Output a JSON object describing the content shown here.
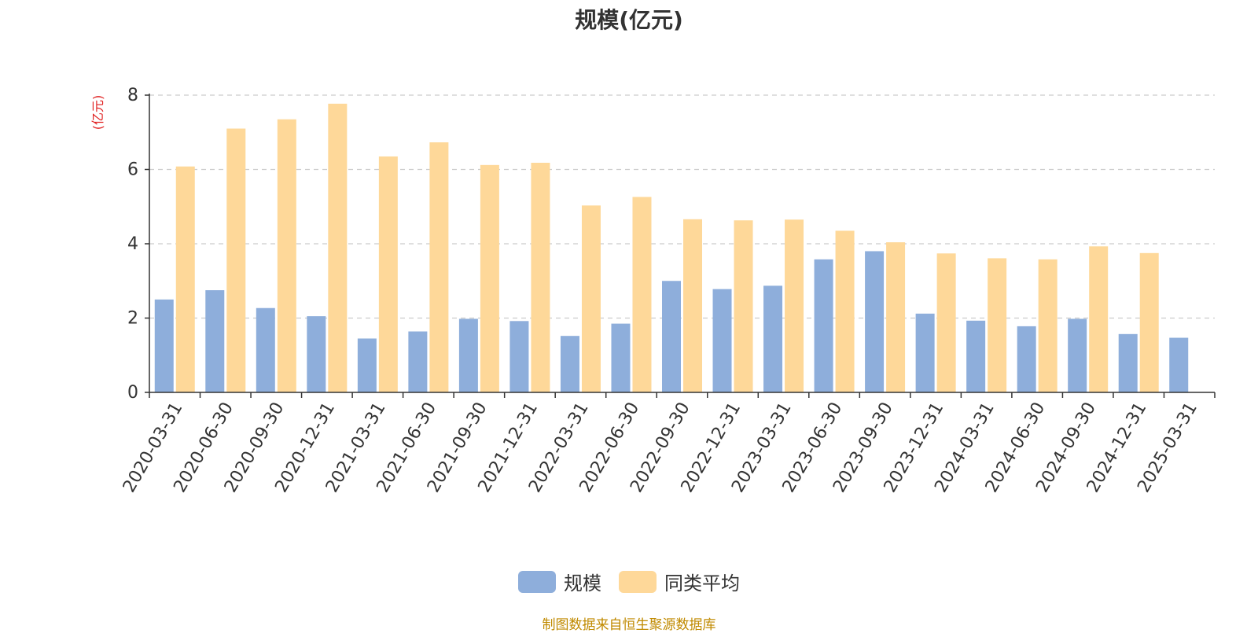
{
  "chart_data": {
    "type": "bar",
    "title": "规模(亿元)",
    "ylabel": "(亿元)",
    "xlabel": "",
    "ylim": [
      0,
      8
    ],
    "yticks": [
      0,
      2,
      4,
      6,
      8
    ],
    "grid": true,
    "legend_position": "bottom-center",
    "categories": [
      "2020-03-31",
      "2020-06-30",
      "2020-09-30",
      "2020-12-31",
      "2021-03-31",
      "2021-06-30",
      "2021-09-30",
      "2021-12-31",
      "2022-03-31",
      "2022-06-30",
      "2022-09-30",
      "2022-12-31",
      "2023-03-31",
      "2023-06-30",
      "2023-09-30",
      "2023-12-31",
      "2024-03-31",
      "2024-06-30",
      "2024-09-30",
      "2024-12-31",
      "2025-03-31"
    ],
    "series": [
      {
        "name": "规模",
        "color": "#8eaedb",
        "values": [
          2.5,
          2.75,
          2.27,
          2.05,
          1.45,
          1.64,
          1.98,
          1.92,
          1.52,
          1.85,
          3.0,
          2.78,
          2.87,
          3.58,
          3.8,
          2.12,
          1.93,
          1.78,
          1.98,
          1.57,
          1.47
        ]
      },
      {
        "name": "同类平均",
        "color": "#fed899",
        "values": [
          6.08,
          7.1,
          7.35,
          7.77,
          6.35,
          6.73,
          6.12,
          6.18,
          5.03,
          5.26,
          4.66,
          4.63,
          4.65,
          4.35,
          4.04,
          3.74,
          3.61,
          3.58,
          3.93,
          3.75,
          null
        ]
      }
    ]
  },
  "footer": {
    "source": "制图数据来自恒生聚源数据库"
  }
}
